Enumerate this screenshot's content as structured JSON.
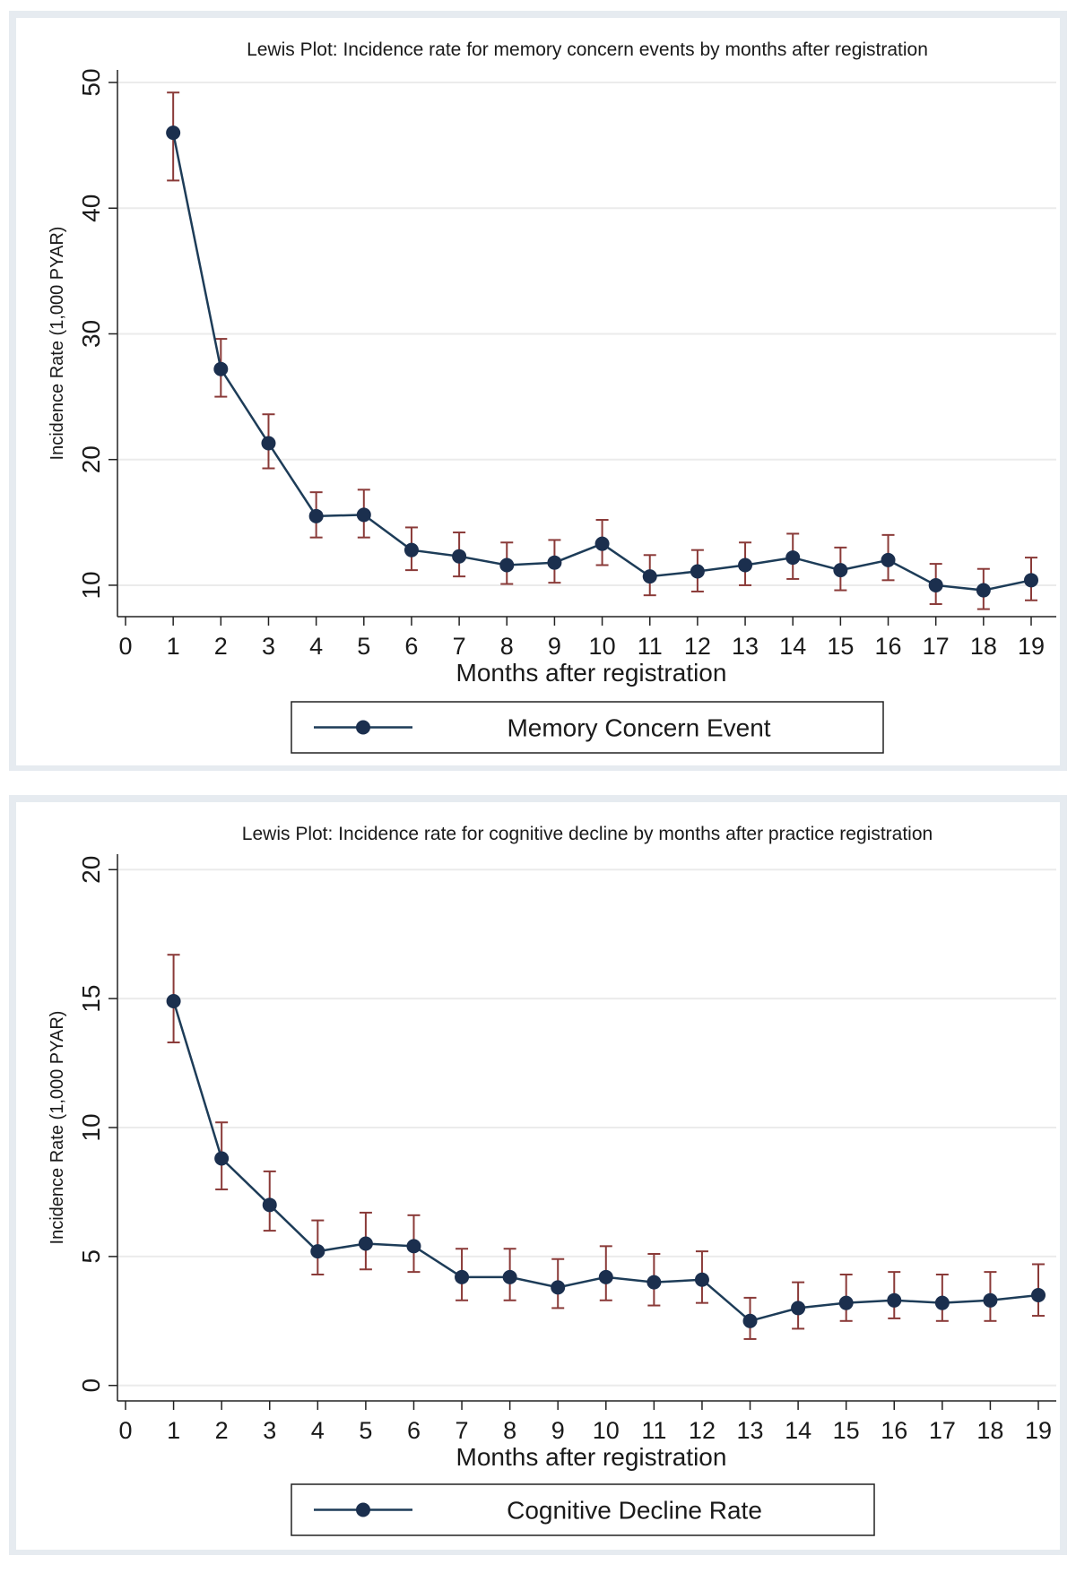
{
  "chart_data": [
    {
      "type": "line",
      "title": "Lewis Plot: Incidence rate for memory concern events by months after registration",
      "xlabel": "Months after registration",
      "ylabel": "Incidence Rate (1,000 PYAR)",
      "xlim": [
        0,
        19
      ],
      "ylim": [
        7.5,
        51
      ],
      "x_ticks": [
        0,
        1,
        2,
        3,
        4,
        5,
        6,
        7,
        8,
        9,
        10,
        11,
        12,
        13,
        14,
        15,
        16,
        17,
        18,
        19
      ],
      "y_ticks": [
        10,
        20,
        30,
        40,
        50
      ],
      "grid": "horizontal",
      "legend_position": "bottom",
      "series": [
        {
          "name": "Memory Concern Event",
          "x": [
            1,
            2,
            3,
            4,
            5,
            6,
            7,
            8,
            9,
            10,
            11,
            12,
            13,
            14,
            15,
            16,
            17,
            18,
            19
          ],
          "y": [
            46.0,
            27.2,
            21.3,
            15.5,
            15.6,
            12.8,
            12.3,
            11.6,
            11.8,
            13.3,
            10.7,
            11.1,
            11.6,
            12.2,
            11.2,
            12.0,
            10.0,
            9.6,
            10.4
          ],
          "lower": [
            42.2,
            25.0,
            19.3,
            13.8,
            13.8,
            11.2,
            10.7,
            10.1,
            10.2,
            11.6,
            9.2,
            9.5,
            10.0,
            10.5,
            9.6,
            10.4,
            8.5,
            8.1,
            8.8
          ],
          "upper": [
            49.2,
            29.6,
            23.6,
            17.4,
            17.6,
            14.6,
            14.2,
            13.4,
            13.6,
            15.2,
            12.4,
            12.8,
            13.4,
            14.1,
            13.0,
            14.0,
            11.7,
            11.3,
            12.2
          ]
        }
      ]
    },
    {
      "type": "line",
      "title": "Lewis Plot: Incidence rate for cognitive decline by months after practice registration",
      "xlabel": "Months after registration",
      "ylabel": "Incidence Rate (1,000 PYAR)",
      "xlim": [
        0,
        19
      ],
      "ylim": [
        -0.6,
        20.6
      ],
      "x_ticks": [
        0,
        1,
        2,
        3,
        4,
        5,
        6,
        7,
        8,
        9,
        10,
        11,
        12,
        13,
        14,
        15,
        16,
        17,
        18,
        19
      ],
      "y_ticks": [
        0,
        5,
        10,
        15,
        20
      ],
      "grid": "horizontal",
      "legend_position": "bottom",
      "series": [
        {
          "name": "Cognitive Decline Rate",
          "x": [
            1,
            2,
            3,
            4,
            5,
            6,
            7,
            8,
            9,
            10,
            11,
            12,
            13,
            14,
            15,
            16,
            17,
            18,
            19
          ],
          "y": [
            14.9,
            8.8,
            7.0,
            5.2,
            5.5,
            5.4,
            4.2,
            4.2,
            3.8,
            4.2,
            4.0,
            4.1,
            2.5,
            3.0,
            3.2,
            3.3,
            3.2,
            3.3,
            3.5
          ],
          "lower": [
            13.3,
            7.6,
            6.0,
            4.3,
            4.5,
            4.4,
            3.3,
            3.3,
            3.0,
            3.3,
            3.1,
            3.2,
            1.8,
            2.2,
            2.5,
            2.6,
            2.5,
            2.5,
            2.7
          ],
          "upper": [
            16.7,
            10.2,
            8.3,
            6.4,
            6.7,
            6.6,
            5.3,
            5.3,
            4.9,
            5.4,
            5.1,
            5.2,
            3.4,
            4.0,
            4.3,
            4.4,
            4.3,
            4.4,
            4.7
          ]
        }
      ]
    }
  ],
  "style": {
    "line_color": "#1d3c58",
    "marker_color": "#1b2f4e",
    "ci_color": "#8a3a38",
    "grid_color": "#ebebeb",
    "frame_color": "#e6ebf0"
  }
}
